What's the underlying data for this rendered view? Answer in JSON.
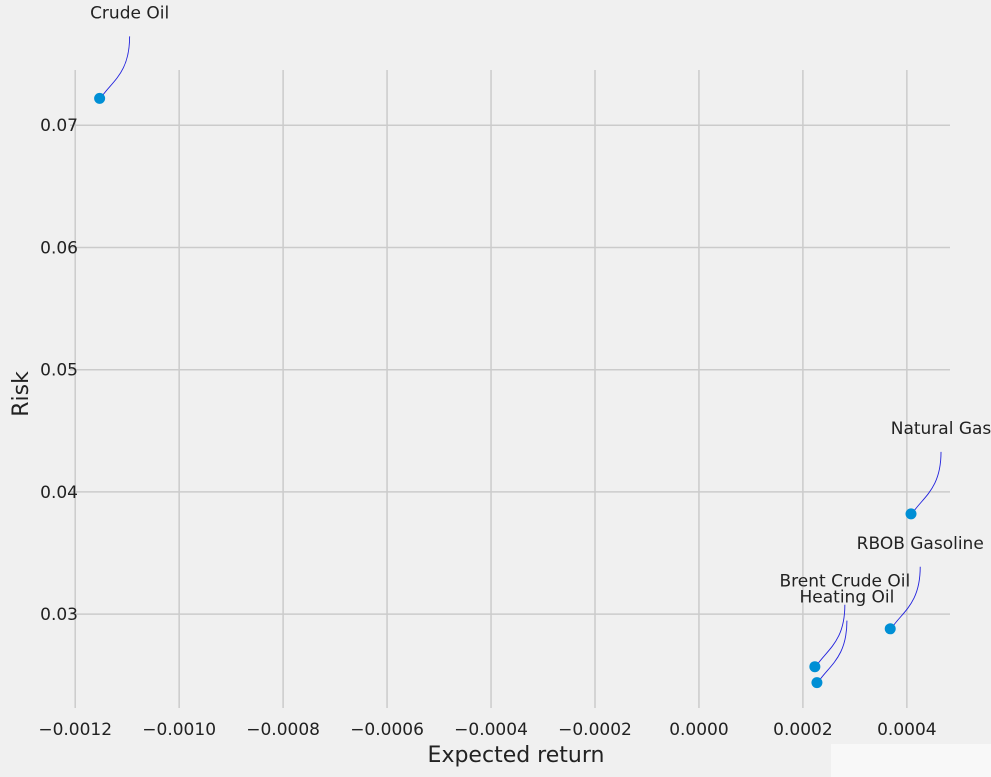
{
  "chart_data": {
    "type": "scatter",
    "xlabel": "Expected return",
    "ylabel": "Risk",
    "xlim": [
      -0.00121,
      0.000483
    ],
    "ylim": [
      0.02232,
      0.07452
    ],
    "xticks": [
      -0.0012,
      -0.001,
      -0.0008,
      -0.0006,
      -0.0004,
      -0.0002,
      0.0,
      0.0002,
      0.0004
    ],
    "xtick_labels": [
      "−0.0012",
      "−0.0010",
      "−0.0008",
      "−0.0006",
      "−0.0004",
      "−0.0002",
      "0.0000",
      "0.0002",
      "0.0004"
    ],
    "yticks": [
      0.03,
      0.04,
      0.05,
      0.06,
      0.07
    ],
    "ytick_labels": [
      "0.03",
      "0.04",
      "0.05",
      "0.06",
      "0.07"
    ],
    "grid": true,
    "point_color": "#008fd5",
    "annotation_color": "#2222dd",
    "points": [
      {
        "label": "Crude Oil",
        "x": -0.001153,
        "y": 0.0722
      },
      {
        "label": "Natural Gas",
        "x": 0.000408,
        "y": 0.0382
      },
      {
        "label": "RBOB Gasoline",
        "x": 0.000368,
        "y": 0.0288
      },
      {
        "label": "Brent Crude Oil",
        "x": 0.000223,
        "y": 0.0257
      },
      {
        "label": "Heating Oil",
        "x": 0.000227,
        "y": 0.0244
      }
    ]
  }
}
